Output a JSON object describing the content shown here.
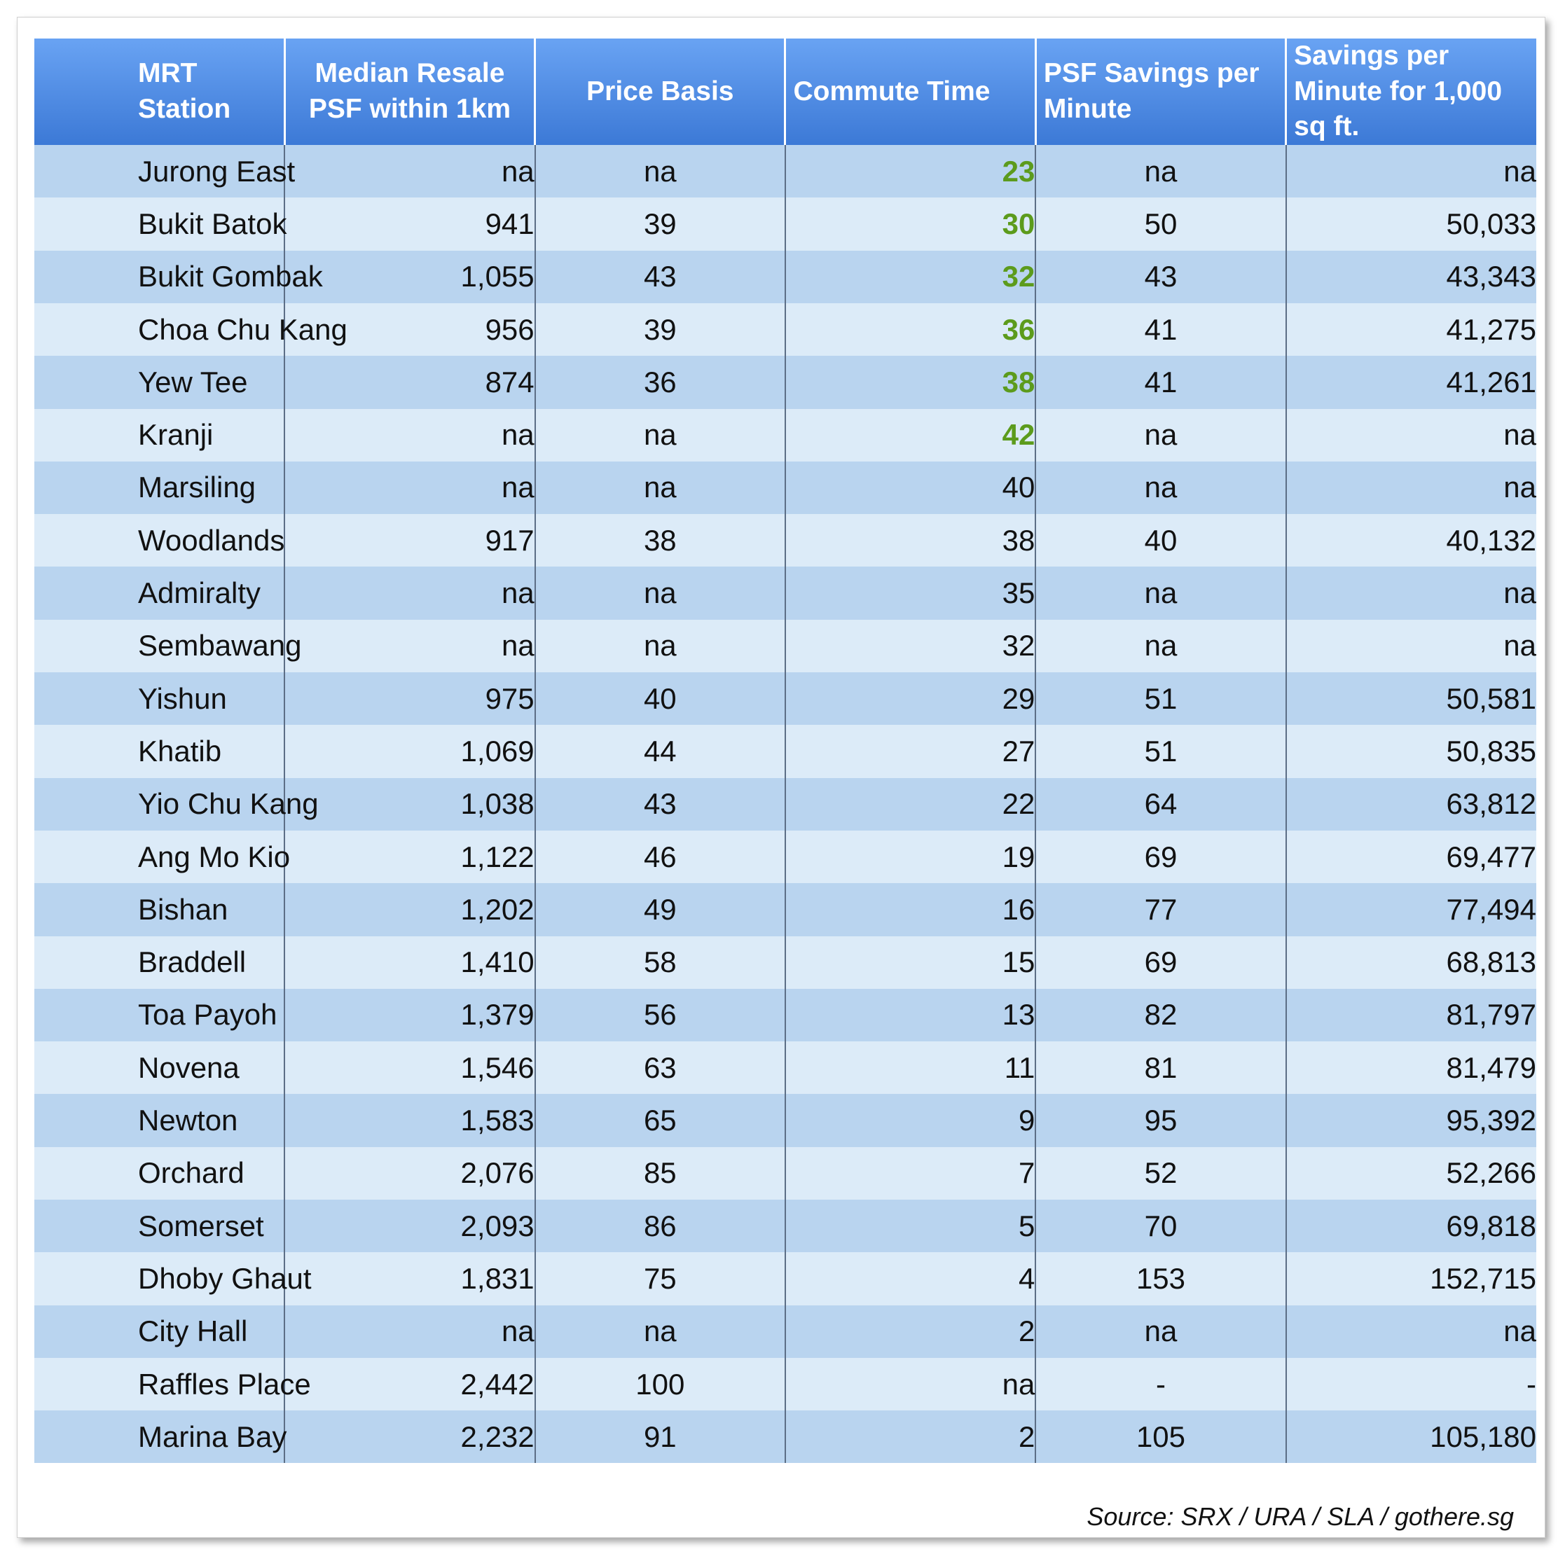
{
  "chart_data": {
    "type": "table",
    "columns": [
      "MRT Station",
      "Median Resale PSF within 1km",
      "Price Basis",
      "Commute Time",
      "PSF Savings per Minute",
      "Savings per Minute for 1,000 sq ft."
    ],
    "rows": [
      {
        "station": "Jurong East",
        "median": "na",
        "basis": "na",
        "commute": "23",
        "psf": "na",
        "savings": "na",
        "highlight": true
      },
      {
        "station": "Bukit Batok",
        "median": "941",
        "basis": "39",
        "commute": "30",
        "psf": "50",
        "savings": "50,033",
        "highlight": true
      },
      {
        "station": "Bukit Gombak",
        "median": "1,055",
        "basis": "43",
        "commute": "32",
        "psf": "43",
        "savings": "43,343",
        "highlight": true
      },
      {
        "station": "Choa Chu Kang",
        "median": "956",
        "basis": "39",
        "commute": "36",
        "psf": "41",
        "savings": "41,275",
        "highlight": true
      },
      {
        "station": "Yew Tee",
        "median": "874",
        "basis": "36",
        "commute": "38",
        "psf": "41",
        "savings": "41,261",
        "highlight": true
      },
      {
        "station": "Kranji",
        "median": "na",
        "basis": "na",
        "commute": "42",
        "psf": "na",
        "savings": "na",
        "highlight": true
      },
      {
        "station": "Marsiling",
        "median": "na",
        "basis": "na",
        "commute": "40",
        "psf": "na",
        "savings": "na",
        "highlight": false
      },
      {
        "station": "Woodlands",
        "median": "917",
        "basis": "38",
        "commute": "38",
        "psf": "40",
        "savings": "40,132",
        "highlight": false
      },
      {
        "station": "Admiralty",
        "median": "na",
        "basis": "na",
        "commute": "35",
        "psf": "na",
        "savings": "na",
        "highlight": false
      },
      {
        "station": "Sembawang",
        "median": "na",
        "basis": "na",
        "commute": "32",
        "psf": "na",
        "savings": "na",
        "highlight": false
      },
      {
        "station": "Yishun",
        "median": "975",
        "basis": "40",
        "commute": "29",
        "psf": "51",
        "savings": "50,581",
        "highlight": false
      },
      {
        "station": "Khatib",
        "median": "1,069",
        "basis": "44",
        "commute": "27",
        "psf": "51",
        "savings": "50,835",
        "highlight": false
      },
      {
        "station": "Yio Chu Kang",
        "median": "1,038",
        "basis": "43",
        "commute": "22",
        "psf": "64",
        "savings": "63,812",
        "highlight": false
      },
      {
        "station": "Ang Mo Kio",
        "median": "1,122",
        "basis": "46",
        "commute": "19",
        "psf": "69",
        "savings": "69,477",
        "highlight": false
      },
      {
        "station": "Bishan",
        "median": "1,202",
        "basis": "49",
        "commute": "16",
        "psf": "77",
        "savings": "77,494",
        "highlight": false
      },
      {
        "station": "Braddell",
        "median": "1,410",
        "basis": "58",
        "commute": "15",
        "psf": "69",
        "savings": "68,813",
        "highlight": false
      },
      {
        "station": "Toa Payoh",
        "median": "1,379",
        "basis": "56",
        "commute": "13",
        "psf": "82",
        "savings": "81,797",
        "highlight": false
      },
      {
        "station": "Novena",
        "median": "1,546",
        "basis": "63",
        "commute": "11",
        "psf": "81",
        "savings": "81,479",
        "highlight": false
      },
      {
        "station": "Newton",
        "median": "1,583",
        "basis": "65",
        "commute": "9",
        "psf": "95",
        "savings": "95,392",
        "highlight": false
      },
      {
        "station": "Orchard",
        "median": "2,076",
        "basis": "85",
        "commute": "7",
        "psf": "52",
        "savings": "52,266",
        "highlight": false
      },
      {
        "station": "Somerset",
        "median": "2,093",
        "basis": "86",
        "commute": "5",
        "psf": "70",
        "savings": "69,818",
        "highlight": false
      },
      {
        "station": "Dhoby Ghaut",
        "median": "1,831",
        "basis": "75",
        "commute": "4",
        "psf": "153",
        "savings": "152,715",
        "highlight": false
      },
      {
        "station": "City Hall",
        "median": "na",
        "basis": "na",
        "commute": "2",
        "psf": "na",
        "savings": "na",
        "highlight": false
      },
      {
        "station": "Raffles Place",
        "median": "2,442",
        "basis": "100",
        "commute": "na",
        "psf": "-",
        "savings": "-",
        "highlight": false
      },
      {
        "station": "Marina Bay",
        "median": "2,232",
        "basis": "91",
        "commute": "2",
        "psf": "105",
        "savings": "105,180",
        "highlight": false
      }
    ]
  },
  "source": "Source:  SRX / URA / SLA / gothere.sg",
  "colors": {
    "header_top": "#69a3f3",
    "header_bottom": "#3c79d6",
    "row_dark": "#b9d4ef",
    "row_light": "#dcebf8",
    "commute_highlight": "#5c9b1c"
  }
}
